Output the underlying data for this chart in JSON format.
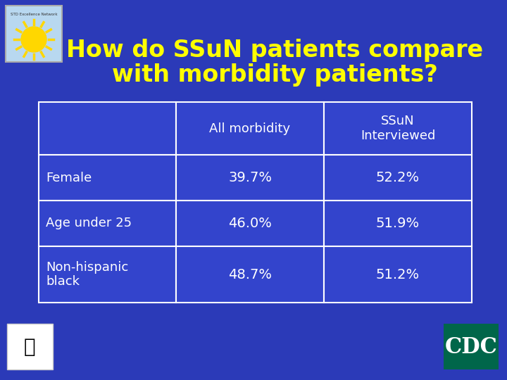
{
  "title_line1": "How do SSuN patients compare",
  "title_line2": "with morbidity patients?",
  "title_color": "#FFFF00",
  "background_color": "#2B3AB8",
  "table_background": "#3344CC",
  "table_border_color": "#FFFFFF",
  "col_headers": [
    "All morbidity",
    "SSuN\nInterviewed"
  ],
  "row_labels": [
    "Female",
    "Age under 25",
    "Non-hispanic\nblack"
  ],
  "col1_values": [
    "39.7%",
    "46.0%",
    "48.7%"
  ],
  "col2_values": [
    "52.2%",
    "51.9%",
    "51.2%"
  ],
  "text_color": "#FFFFFF",
  "header_fontsize": 13,
  "cell_fontsize": 14,
  "title_fontsize": 24,
  "row_label_fontsize": 13
}
